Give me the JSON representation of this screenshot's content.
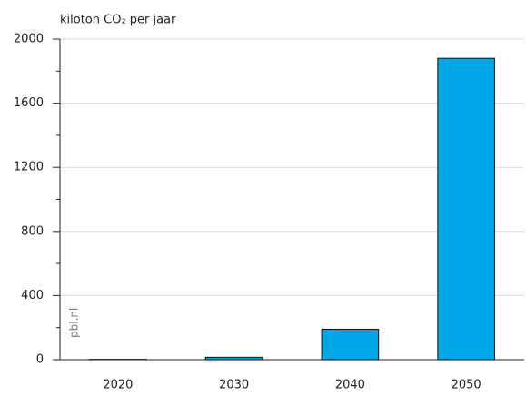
{
  "chart_data": {
    "type": "bar",
    "y_label": "kiloton CO₂ per jaar",
    "source": "pbl.nl",
    "categories": [
      "2020",
      "2030",
      "2040",
      "2050"
    ],
    "values": [
      2,
      15,
      190,
      1880
    ],
    "color": "#00a6e6",
    "ylim": [
      0,
      2000
    ],
    "yticks": [
      0,
      400,
      800,
      1200,
      1600,
      2000
    ],
    "grid": true
  }
}
